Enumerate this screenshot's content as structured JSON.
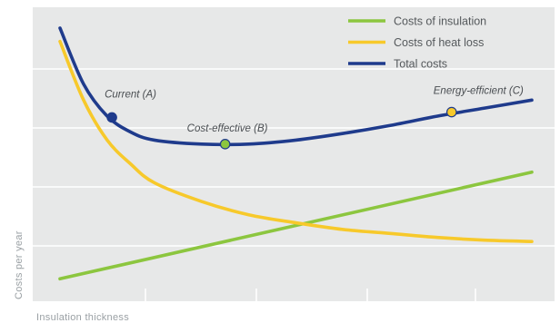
{
  "chart_data": {
    "type": "line",
    "xlabel": "Insulation thickness",
    "ylabel": "Costs per year",
    "xlim": [
      0,
      10
    ],
    "ylim": [
      0,
      10
    ],
    "grid": true,
    "legend_position": "top-right",
    "series": [
      {
        "name": "Costs of insulation",
        "color": "#8cc63f",
        "x": [
          0,
          10
        ],
        "y": [
          0.5,
          4.5
        ]
      },
      {
        "name": "Costs of heat loss",
        "color": "#f7c92b",
        "x": [
          0,
          0.5,
          1,
          1.5,
          2,
          3,
          4,
          5,
          6,
          7,
          8,
          9,
          10
        ],
        "y": [
          9.4,
          7.2,
          5.7,
          4.8,
          4.1,
          3.4,
          2.9,
          2.6,
          2.35,
          2.2,
          2.05,
          1.95,
          1.9
        ]
      },
      {
        "name": "Total costs",
        "color": "#1f3b8c",
        "x": [
          0,
          0.5,
          1,
          1.5,
          2,
          3,
          4,
          5,
          6,
          7,
          8,
          9,
          10
        ],
        "y": [
          9.9,
          7.8,
          6.6,
          6.0,
          5.7,
          5.55,
          5.55,
          5.7,
          5.95,
          6.25,
          6.6,
          6.9,
          7.2
        ]
      }
    ],
    "annotations": [
      {
        "label": "Current (A)",
        "x": 1.1,
        "y": 6.55,
        "color": "#1f3b8c"
      },
      {
        "label": "Cost-effective (B)",
        "x": 3.5,
        "y": 5.55,
        "color": "#8cc63f"
      },
      {
        "label": "Energy-efficient (C)",
        "x": 8.3,
        "y": 6.75,
        "color": "#f7c92b"
      }
    ]
  }
}
